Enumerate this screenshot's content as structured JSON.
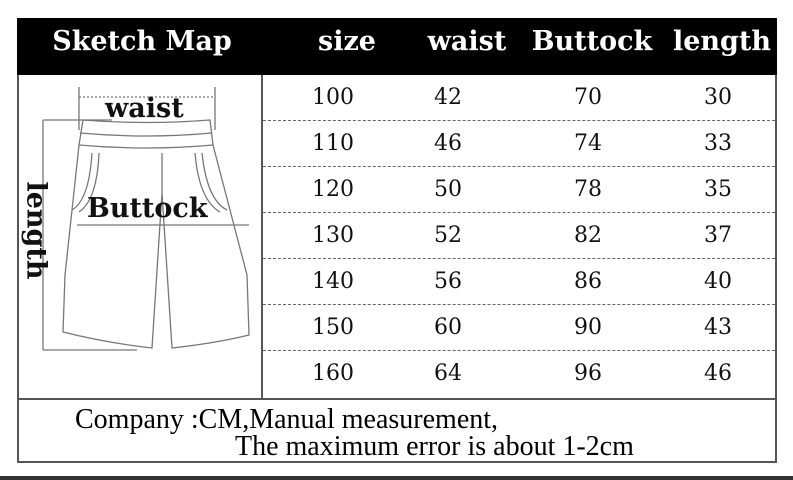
{
  "header": {
    "columns": [
      "Sketch Map",
      "size",
      "waist",
      "Buttock",
      "length"
    ]
  },
  "sketch": {
    "waist_label": "waist",
    "buttock_label": "Buttock",
    "length_label": "length"
  },
  "rows": [
    [
      "100",
      "42",
      "70",
      "30"
    ],
    [
      "110",
      "46",
      "74",
      "33"
    ],
    [
      "120",
      "50",
      "78",
      "35"
    ],
    [
      "130",
      "52",
      "82",
      "37"
    ],
    [
      "140",
      "56",
      "86",
      "40"
    ],
    [
      "150",
      "60",
      "90",
      "43"
    ],
    [
      "160",
      "64",
      "96",
      "46"
    ]
  ],
  "footer": {
    "line1": "Company :CM,Manual measurement,",
    "line2": "The maximum error is about 1-2cm"
  }
}
